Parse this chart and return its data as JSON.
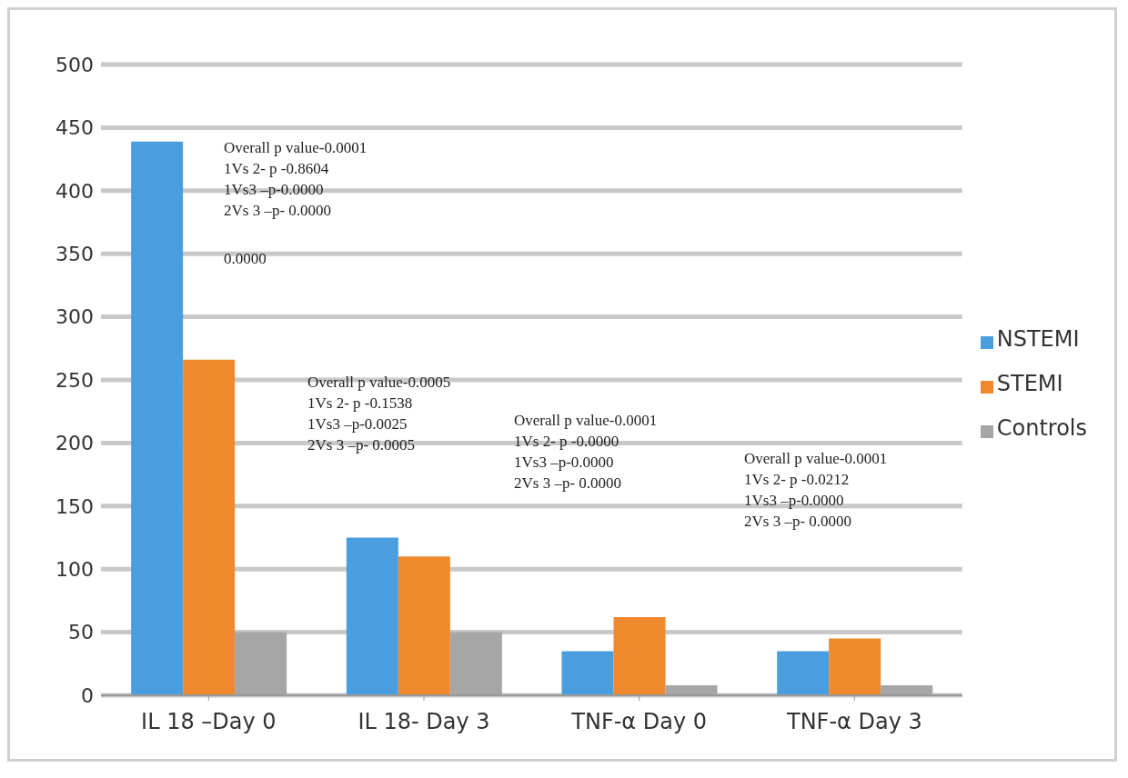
{
  "chart_data": {
    "type": "bar",
    "categories": [
      "IL 18 –Day 0",
      "IL 18- Day 3",
      "TNF-α Day 0",
      "TNF-α Day 3"
    ],
    "series": [
      {
        "name": "NSTEMI",
        "color": "#4a9ede",
        "values": [
          439,
          125,
          35,
          35
        ]
      },
      {
        "name": "STEMI",
        "color": "#f0882e",
        "values": [
          266,
          110,
          62,
          45
        ]
      },
      {
        "name": "Controls",
        "color": "#a6a6a6",
        "values": [
          50,
          50,
          8,
          8
        ]
      }
    ],
    "ylim": [
      0,
      500
    ],
    "yticks": [
      0,
      50,
      100,
      150,
      200,
      250,
      300,
      350,
      400,
      450,
      500
    ],
    "grid": "y",
    "legend": "right",
    "annotations": [
      "Overall p value-0.0001\n1Vs 2- p -0.8604\n1Vs3 –p-0.0000\n2Vs 3 –p- 0.0000",
      "0.0000",
      "Overall p value-0.0005\n1Vs 2- p -0.1538\n1Vs3 –p-0.0025\n2Vs 3 –p- 0.0005",
      "Overall p value-0.0001\n1Vs 2- p -0.0000\n1Vs3 –p-0.0000\n2Vs 3 –p- 0.0000",
      "Overall p value-0.0001\n1Vs 2- p -0.0212\n1Vs3 –p-0.0000\n2Vs 3 –p- 0.0000"
    ]
  }
}
